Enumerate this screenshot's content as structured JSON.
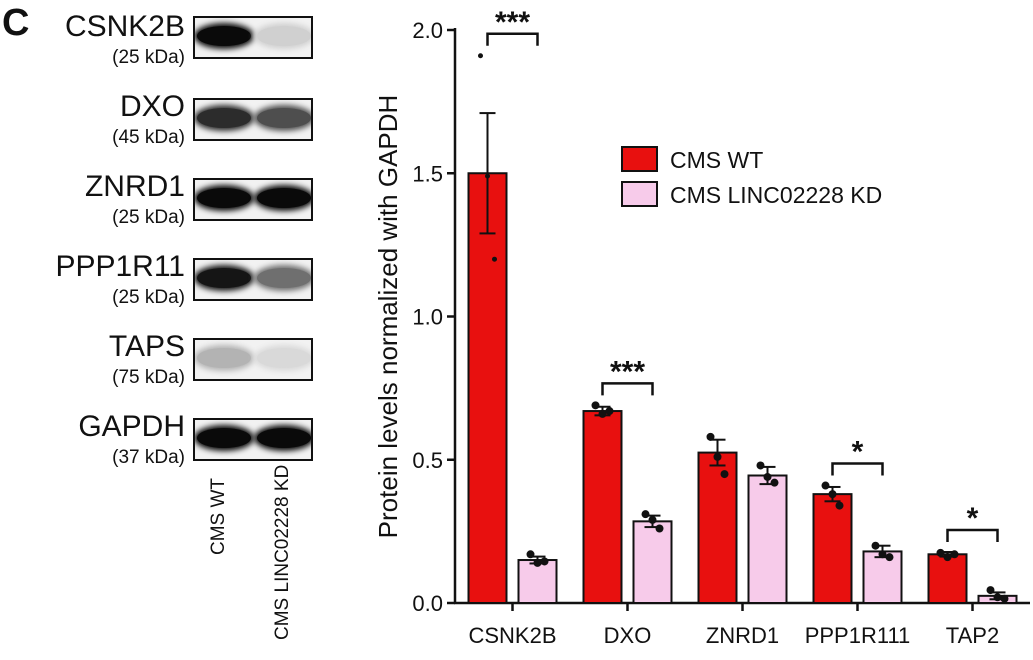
{
  "panel_letter": "C",
  "blots": [
    {
      "name": "CSNK2B",
      "kda": "(25 kDa)",
      "wt_intensity": 1.0,
      "kd_intensity": 0.12
    },
    {
      "name": "DXO",
      "kda": "(45 kDa)",
      "wt_intensity": 0.85,
      "kd_intensity": 0.7
    },
    {
      "name": "ZNRD1",
      "kda": "(25 kDa)",
      "wt_intensity": 1.0,
      "kd_intensity": 1.0
    },
    {
      "name": "PPP1R11",
      "kda": "(25 kDa)",
      "wt_intensity": 0.95,
      "kd_intensity": 0.55
    },
    {
      "name": "TAPS",
      "kda": "(75 kDa)",
      "wt_intensity": 0.25,
      "kd_intensity": 0.08
    },
    {
      "name": "GAPDH",
      "kda": "(37 kDa)",
      "wt_intensity": 1.0,
      "kd_intensity": 1.0
    }
  ],
  "lane_labels": [
    "CMS WT",
    "CMS LINC02228 KD"
  ],
  "colors": {
    "wt": "#e8100f",
    "kd": "#f7cbea",
    "outline": "#111111"
  },
  "chart_data": {
    "type": "bar",
    "categories": [
      "CSNK2B",
      "DXO",
      "ZNRD1",
      "PPP1R111",
      "TAP2"
    ],
    "series": [
      {
        "name": "CMS WT",
        "values": [
          1.5,
          0.67,
          0.525,
          0.38,
          0.17
        ],
        "errors": [
          0.21,
          0.015,
          0.045,
          0.025,
          0.008
        ],
        "points": [
          [
            1.91,
            1.49,
            1.2
          ],
          [
            0.69,
            0.66,
            0.67
          ],
          [
            0.58,
            0.51,
            0.45
          ],
          [
            0.41,
            0.38,
            0.34
          ],
          [
            0.175,
            0.16,
            0.17
          ]
        ]
      },
      {
        "name": "CMS LINC02228 KD",
        "values": [
          0.15,
          0.285,
          0.445,
          0.18,
          0.025
        ],
        "errors": [
          0.012,
          0.02,
          0.03,
          0.02,
          0.012
        ],
        "points": [
          [
            0.17,
            0.14,
            0.145
          ],
          [
            0.31,
            0.29,
            0.26
          ],
          [
            0.48,
            0.44,
            0.42
          ],
          [
            0.2,
            0.17,
            0.16
          ],
          [
            0.045,
            0.02,
            0.015
          ]
        ]
      }
    ],
    "significance": [
      {
        "category": "CSNK2B",
        "label": "***"
      },
      {
        "category": "DXO",
        "label": "***"
      },
      {
        "category": "PPP1R111",
        "label": "*"
      },
      {
        "category": "TAP2",
        "label": "*"
      }
    ],
    "ylabel": "Protein levels normalized with GAPDH",
    "xlabel": "",
    "ylim": [
      0,
      2.0
    ],
    "yticks": [
      "0.0",
      "0.5",
      "1.0",
      "1.5",
      "2.0"
    ],
    "legend_position": "top-right",
    "grid": false
  }
}
